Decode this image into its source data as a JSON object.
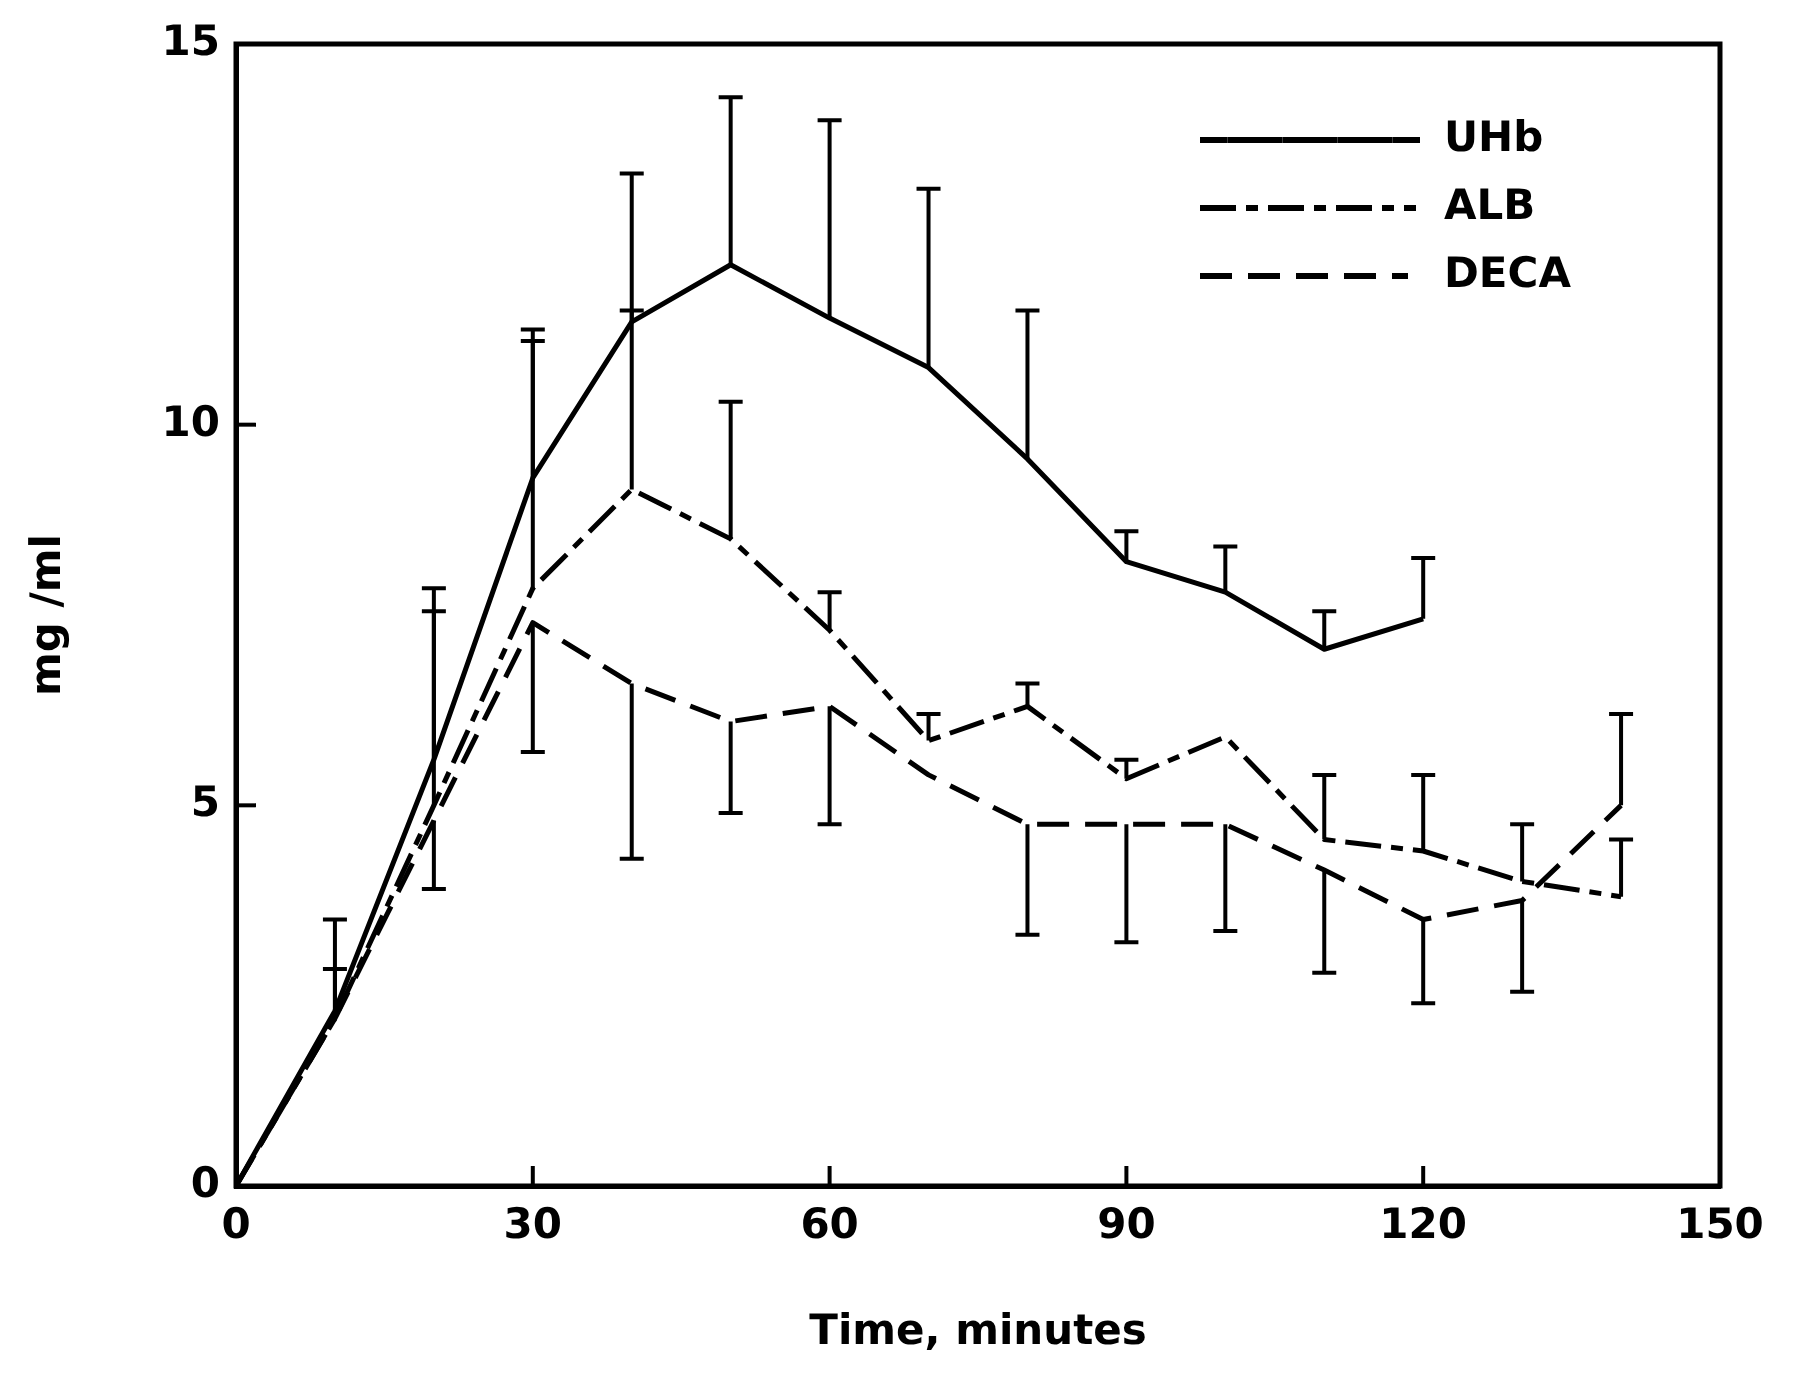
{
  "chart_data": {
    "type": "line",
    "xlabel": "Time, minutes",
    "ylabel": "mg /ml",
    "x": [
      0,
      10,
      20,
      30,
      40,
      50,
      60,
      70,
      80,
      90,
      100,
      110,
      120,
      130,
      140
    ],
    "series": [
      {
        "name": "UHb",
        "color": "#000000",
        "line_style": "solid",
        "values": [
          0,
          2.3,
          5.6,
          9.3,
          11.35,
          12.1,
          11.4,
          10.75,
          9.55,
          8.2,
          7.8,
          7.05,
          7.45,
          null,
          null
        ],
        "errors": [
          null,
          [
            2.3,
            3.5
          ],
          [
            5.6,
            7.85
          ],
          [
            9.3,
            11.25
          ],
          [
            11.35,
            13.3
          ],
          [
            12.1,
            14.3
          ],
          [
            11.4,
            14.0
          ],
          [
            10.75,
            13.1
          ],
          [
            9.55,
            11.5
          ],
          [
            8.2,
            8.6
          ],
          [
            7.8,
            8.4
          ],
          [
            7.05,
            7.55
          ],
          [
            7.45,
            8.25
          ],
          null,
          null
        ]
      },
      {
        "name": "ALB",
        "color": "#000000",
        "line_style": "dashdot",
        "values": [
          0,
          2.2,
          5.0,
          7.85,
          9.15,
          8.5,
          7.3,
          5.85,
          6.3,
          5.35,
          5.9,
          4.55,
          4.4,
          4.0,
          3.8
        ],
        "errors": [
          null,
          [
            2.2,
            2.85
          ],
          [
            5.0,
            7.55
          ],
          [
            7.85,
            11.1
          ],
          [
            9.15,
            11.5
          ],
          [
            8.5,
            10.3
          ],
          [
            7.3,
            7.8
          ],
          [
            5.85,
            6.2
          ],
          [
            6.3,
            6.6
          ],
          [
            5.35,
            5.6
          ],
          null,
          [
            4.55,
            5.4
          ],
          [
            4.4,
            5.4
          ],
          [
            4.0,
            4.75
          ],
          [
            3.8,
            4.55
          ]
        ]
      },
      {
        "name": "DECA",
        "color": "#000000",
        "line_style": "dashed",
        "values": [
          0,
          2.2,
          4.8,
          7.4,
          6.6,
          6.1,
          6.3,
          5.4,
          4.75,
          4.75,
          4.75,
          4.15,
          3.5,
          3.75,
          5.0
        ],
        "errors": [
          null,
          null,
          [
            3.9,
            4.8
          ],
          [
            5.7,
            7.4
          ],
          [
            4.3,
            6.6
          ],
          [
            4.9,
            6.1
          ],
          [
            4.75,
            6.3
          ],
          null,
          [
            3.3,
            4.75
          ],
          [
            3.2,
            4.75
          ],
          [
            3.35,
            4.75
          ],
          [
            2.8,
            4.15
          ],
          [
            2.4,
            3.5
          ],
          [
            2.55,
            3.75
          ],
          [
            5.0,
            6.2
          ]
        ]
      }
    ],
    "xlim": [
      0,
      150
    ],
    "xticks": [
      0,
      30,
      60,
      90,
      120,
      150
    ],
    "ylim": [
      0,
      15
    ],
    "yticks": [
      0,
      5,
      10,
      15
    ],
    "grid": false,
    "legend": "top right",
    "marker": "none"
  }
}
